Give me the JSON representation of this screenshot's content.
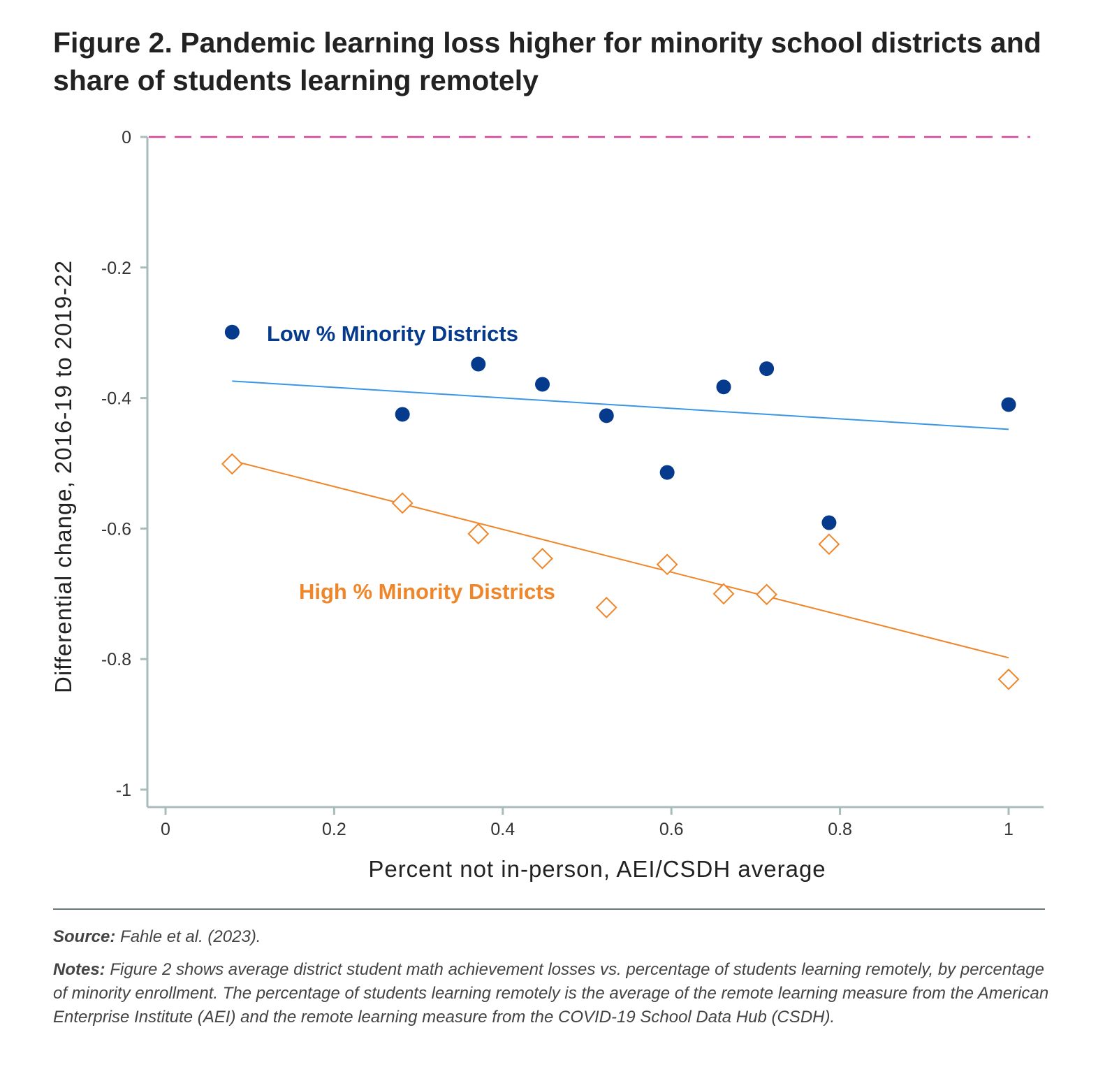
{
  "title": "Figure 2. Pandemic learning loss higher for minority school districts and share of students learning remotely",
  "chart_data": {
    "type": "scatter",
    "xlabel": "Percent not in-person, AEI/CSDH average",
    "ylabel": "Differential change, 2016-19 to 2019-22",
    "xlim": [
      -0.02,
      1.04
    ],
    "ylim": [
      -1.03,
      0
    ],
    "xticks": [
      "0",
      "0.2",
      "0.4",
      "0.6",
      "0.8",
      "1"
    ],
    "xtick_values": [
      0,
      0.2,
      0.4,
      0.6,
      0.8,
      1
    ],
    "yticks": [
      "0",
      "-0.2",
      "-0.4",
      "-0.6",
      "-0.8",
      "-1"
    ],
    "ytick_values": [
      0,
      -0.2,
      -0.4,
      -0.6,
      -0.8,
      -1
    ],
    "reference_line": {
      "y": 0,
      "style": "dashed",
      "color": "#e0409a"
    },
    "series": [
      {
        "name": "Low % Minority Districts",
        "marker": "filled-circle",
        "color": "#063a8c",
        "line_color": "#3a96e6",
        "x": [
          0.079,
          0.281,
          0.371,
          0.447,
          0.523,
          0.595,
          0.662,
          0.713,
          0.787,
          1.0
        ],
        "y": [
          -0.299,
          -0.425,
          -0.348,
          -0.379,
          -0.427,
          -0.514,
          -0.383,
          -0.355,
          -0.591,
          -0.41
        ],
        "fit": {
          "x": [
            0.079,
            1.0
          ],
          "y": [
            -0.374,
            -0.448
          ]
        }
      },
      {
        "name": "High % Minority Districts",
        "marker": "open-diamond",
        "color": "#f0862a",
        "line_color": "#f0862a",
        "x": [
          0.079,
          0.281,
          0.371,
          0.447,
          0.523,
          0.595,
          0.662,
          0.713,
          0.787,
          1.0
        ],
        "y": [
          -0.501,
          -0.561,
          -0.608,
          -0.646,
          -0.721,
          -0.655,
          -0.7,
          -0.701,
          -0.624,
          -0.831
        ],
        "fit": {
          "x": [
            0.079,
            1.0
          ],
          "y": [
            -0.496,
            -0.798
          ]
        }
      }
    ],
    "legend": "inline-labels"
  },
  "footer": {
    "source_label": "Source:",
    "source_text": "Fahle et al. (2023).",
    "notes_label": "Notes:",
    "notes_text": "Figure 2 shows average district student math achievement losses vs. percentage of students learning remotely, by percentage of minority enrollment. The percentage of students learning remotely is the average of the remote learning measure from the American Enterprise Institute (AEI) and the remote learning measure from the COVID-19 School Data Hub (CSDH)."
  }
}
